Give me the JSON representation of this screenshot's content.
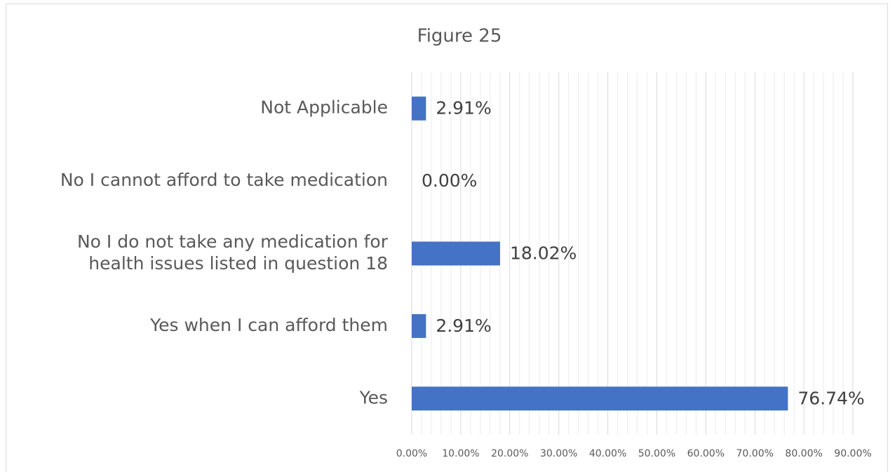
{
  "chart_data": {
    "type": "bar",
    "orientation": "horizontal",
    "title": "Figure 25",
    "categories": [
      "Not Applicable",
      "No I cannot afford to take medication",
      "No I do not take any medication for\nhealth issues listed in question 18",
      "Yes when I can afford them",
      "Yes"
    ],
    "values": [
      2.91,
      0,
      18.02,
      2.91,
      76.74
    ],
    "value_labels": [
      "2.91%",
      "0.00%",
      "18.02%",
      "2.91%",
      "76.74%"
    ],
    "color": "#4472c4",
    "xlim": [
      0,
      90
    ],
    "xticks": [
      {
        "value": 0,
        "label": "0.00%"
      },
      {
        "value": 10,
        "label": "10.00%"
      },
      {
        "value": 20,
        "label": "20.00%"
      },
      {
        "value": 30,
        "label": "30.00%"
      },
      {
        "value": 40,
        "label": "40.00%"
      },
      {
        "value": 50,
        "label": "50.00%"
      },
      {
        "value": 60,
        "label": "60.00%"
      },
      {
        "value": 70,
        "label": "70.00%"
      },
      {
        "value": 80,
        "label": "80.00%"
      },
      {
        "value": 90,
        "label": "90.00%"
      }
    ],
    "xminorticks": [
      2,
      4,
      6,
      8,
      12,
      14,
      16,
      18,
      22,
      24,
      26,
      28,
      32,
      34,
      36,
      38,
      42,
      44,
      46,
      48,
      52,
      54,
      56,
      58,
      62,
      64,
      66,
      68,
      72,
      74,
      76,
      78,
      82,
      84,
      86,
      88
    ],
    "grid": true
  }
}
